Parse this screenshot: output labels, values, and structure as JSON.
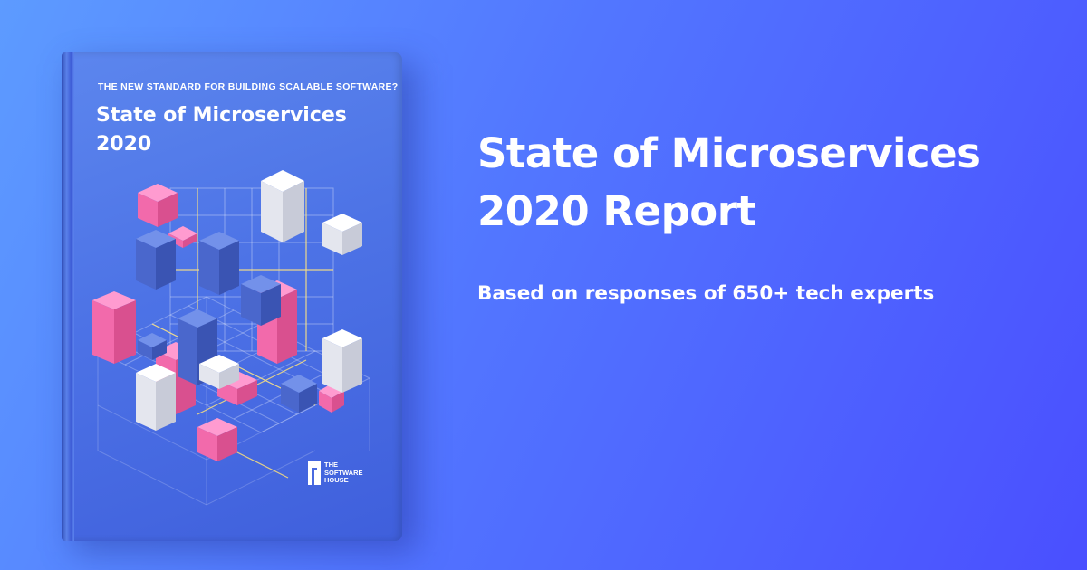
{
  "book": {
    "subtitle": "THE NEW STANDARD FOR BUILDING SCALABLE SOFTWARE?",
    "title_line1": "State of Microservices",
    "title_line2": "2020",
    "publisher_line1": "THE",
    "publisher_line2": "SOFTWARE",
    "publisher_line3": "HOUSE"
  },
  "headline": {
    "line1": "State of Microservices",
    "line2": "2020 Report"
  },
  "tagline": "Based on responses of 650+ tech experts",
  "colors": {
    "background_start": "#5d9bff",
    "background_end": "#4a4fff",
    "book_cover": "#4d73e6",
    "cube_pink": "#f06aa8",
    "cube_blue": "#4a67cc",
    "cube_white": "#f2f2f2",
    "grid_yellow": "#ffe37a",
    "text": "#ffffff"
  }
}
